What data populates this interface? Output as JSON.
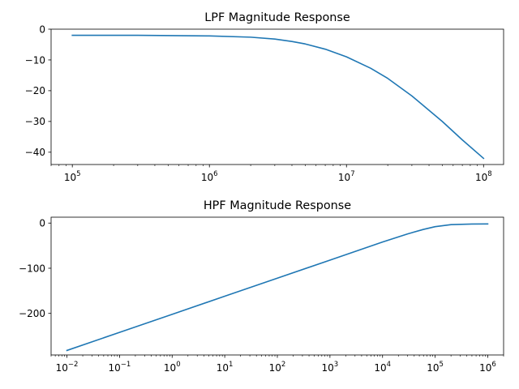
{
  "chart_data": [
    {
      "type": "line",
      "title": "LPF Magnitude Response",
      "xscale": "log",
      "xlim": [
        70000,
        140000000
      ],
      "ylim": [
        -44,
        0
      ],
      "xticks": [
        {
          "value": 100000,
          "base": "10",
          "exp": "5"
        },
        {
          "value": 1000000,
          "base": "10",
          "exp": "6"
        },
        {
          "value": 10000000,
          "base": "10",
          "exp": "7"
        },
        {
          "value": 100000000,
          "base": "10",
          "exp": "8"
        }
      ],
      "yticks": [
        {
          "value": 0,
          "label": "0"
        },
        {
          "value": -10,
          "label": "−10"
        },
        {
          "value": -20,
          "label": "−20"
        },
        {
          "value": -30,
          "label": "−30"
        },
        {
          "value": -40,
          "label": "−40"
        }
      ],
      "color": "#1f77b4",
      "series": [
        {
          "x": [
            100000,
            300000,
            1000000,
            2000000,
            3000000,
            4000000,
            5000000,
            7000000,
            10000000,
            15000000,
            20000000,
            30000000,
            50000000,
            70000000,
            100000000
          ],
          "y": [
            -2,
            -2,
            -2.2,
            -2.6,
            -3.2,
            -4,
            -4.8,
            -6.5,
            -9,
            -12.7,
            -16,
            -21.7,
            -30,
            -36,
            -42
          ]
        }
      ]
    },
    {
      "type": "line",
      "title": "HPF Magnitude Response",
      "xscale": "log",
      "xlim": [
        0.005,
        2000000
      ],
      "ylim": [
        -292,
        13
      ],
      "xticks": [
        {
          "value": 0.01,
          "base": "10",
          "exp": "−2"
        },
        {
          "value": 0.1,
          "base": "10",
          "exp": "−1"
        },
        {
          "value": 1,
          "base": "10",
          "exp": "0"
        },
        {
          "value": 10,
          "base": "10",
          "exp": "1"
        },
        {
          "value": 100,
          "base": "10",
          "exp": "2"
        },
        {
          "value": 1000,
          "base": "10",
          "exp": "3"
        },
        {
          "value": 10000,
          "base": "10",
          "exp": "4"
        },
        {
          "value": 100000,
          "base": "10",
          "exp": "5"
        },
        {
          "value": 1000000,
          "base": "10",
          "exp": "6"
        }
      ],
      "yticks": [
        {
          "value": 0,
          "label": "0"
        },
        {
          "value": -100,
          "label": "−100"
        },
        {
          "value": -200,
          "label": "−200"
        }
      ],
      "color": "#1f77b4",
      "series": [
        {
          "x": [
            0.01,
            0.1,
            1,
            10,
            100,
            1000,
            10000,
            30000,
            60000,
            100000,
            200000,
            500000,
            1000000
          ],
          "y": [
            -282,
            -242,
            -202,
            -162,
            -122,
            -82,
            -42,
            -24,
            -14,
            -8,
            -3.5,
            -2.2,
            -2
          ]
        }
      ]
    }
  ]
}
